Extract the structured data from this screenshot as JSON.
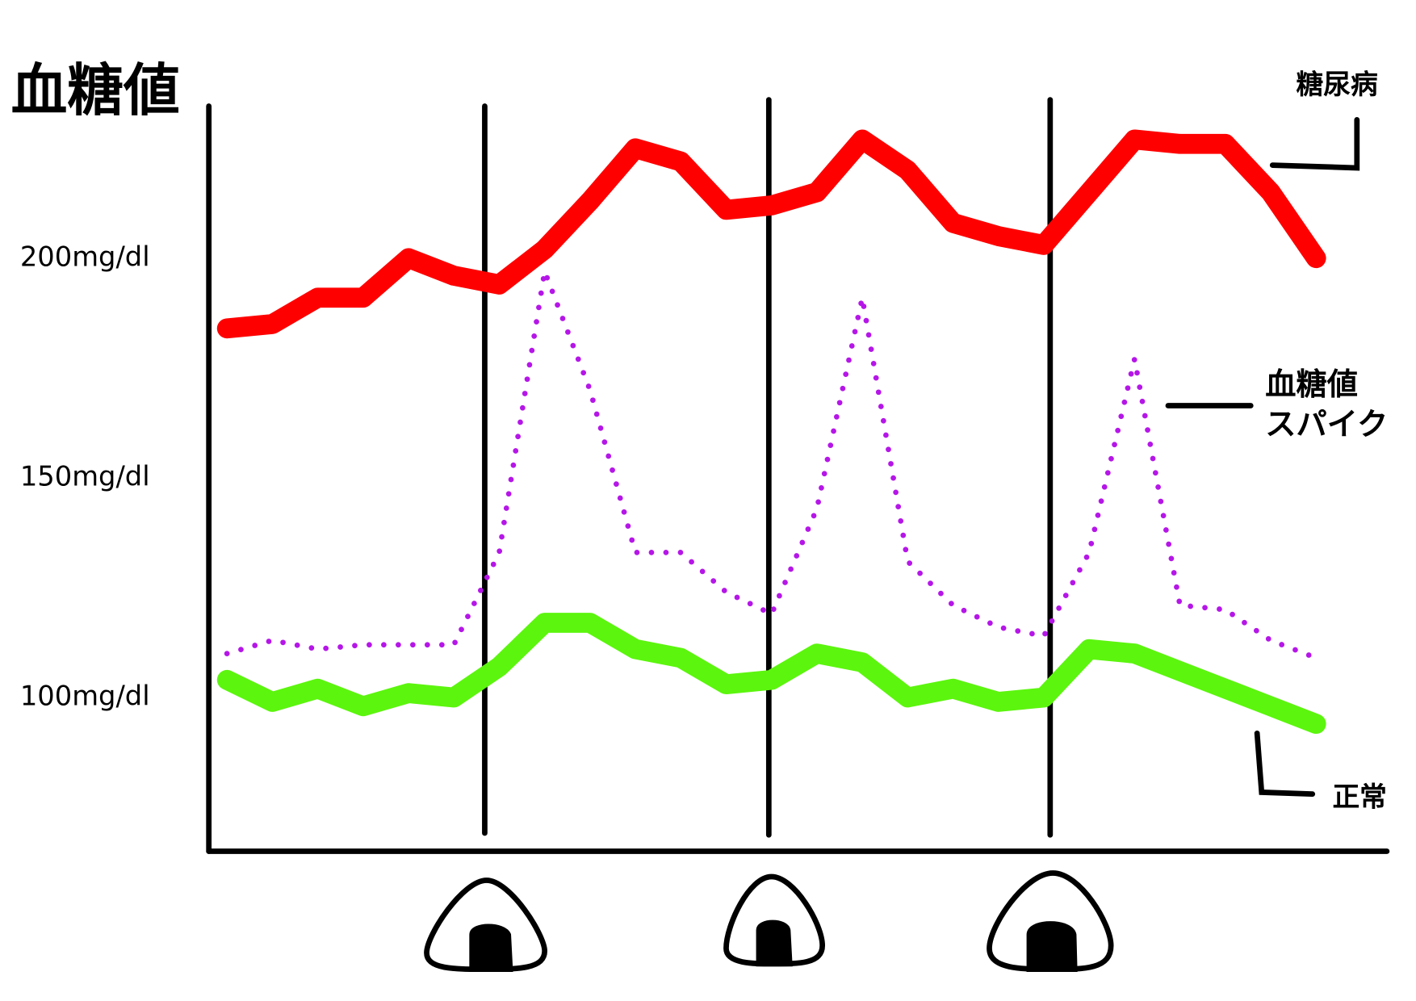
{
  "chart_data": {
    "type": "line",
    "title": "血糖値",
    "ylim": [
      65,
      235
    ],
    "yticks": [
      {
        "value": 100,
        "label": "100mg/dl"
      },
      {
        "value": 150,
        "label": "150mg/dl"
      },
      {
        "value": 200,
        "label": "200mg/dl"
      }
    ],
    "series": [
      {
        "name": "糖尿病",
        "color": "#ff0000",
        "style": "solid",
        "values": [
          184,
          185,
          191,
          191,
          200,
          196,
          194,
          202,
          213,
          225,
          222,
          211,
          212,
          215,
          227,
          220,
          208,
          205,
          203,
          215,
          227,
          226,
          226,
          215,
          200
        ]
      },
      {
        "name": "血糖値\nスパイク",
        "color": "#b516e8",
        "style": "dotted",
        "values": [
          110,
          113,
          111,
          112,
          112,
          112,
          133,
          197,
          170,
          133,
          133,
          124,
          119,
          143,
          191,
          131,
          121,
          116,
          114,
          133,
          177,
          121,
          120,
          113,
          109
        ]
      },
      {
        "name": "正常",
        "color": "#5cf50e",
        "style": "solid",
        "values": [
          104,
          99,
          102,
          98,
          101,
          100,
          107,
          117,
          117,
          111,
          109,
          103,
          104,
          110,
          108,
          100,
          102,
          99,
          100,
          111,
          110,
          106,
          102,
          98,
          94
        ]
      }
    ]
  }
}
